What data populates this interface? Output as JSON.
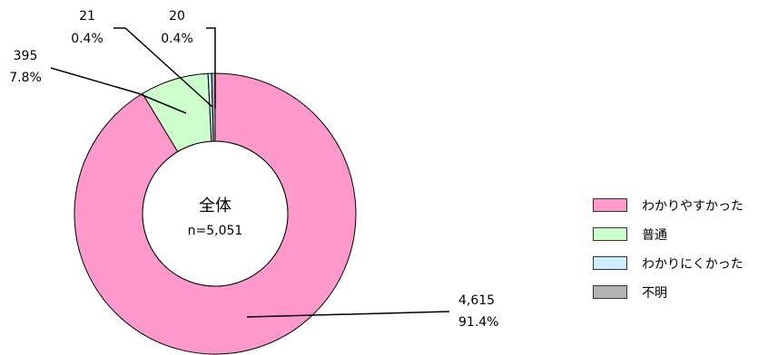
{
  "chart_data": {
    "type": "donut",
    "center_title": "全体",
    "center_subtitle": "n=5,051",
    "slices": [
      {
        "name": "わかりやすかった",
        "value": 4615,
        "percent": "91.4%",
        "value_label": "4,615",
        "color": "#FF99CC"
      },
      {
        "name": "普通",
        "value": 395,
        "percent": "7.8%",
        "value_label": "395",
        "color": "#CCFFCC"
      },
      {
        "name": "わかりにくかった",
        "value": 21,
        "percent": "0.4%",
        "value_label": "21",
        "color": "#CCECFF"
      },
      {
        "name": "不明",
        "value": 20,
        "percent": "0.4%",
        "value_label": "20",
        "color": "#B2B2B2"
      }
    ],
    "legend_position": "right"
  }
}
